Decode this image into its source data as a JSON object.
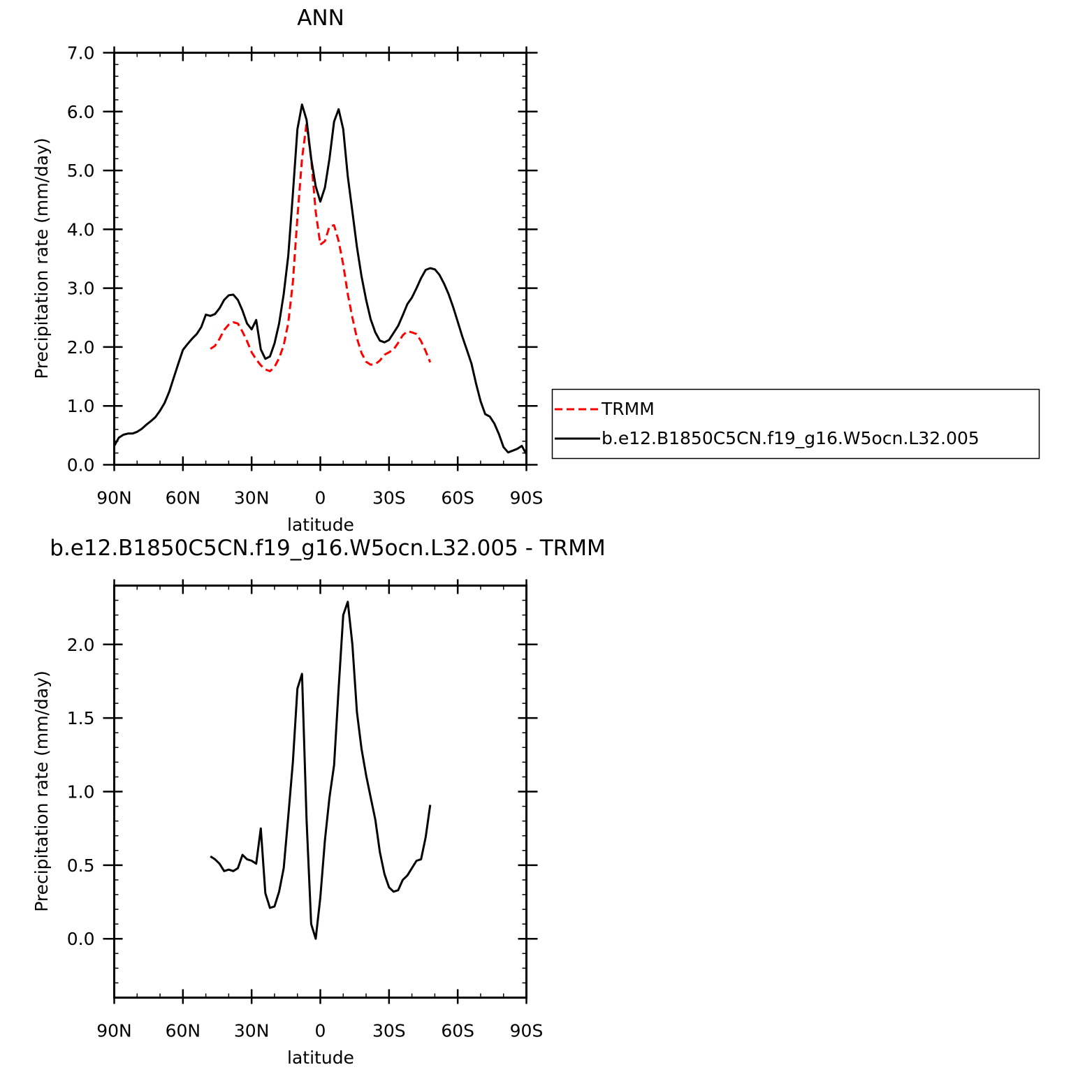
{
  "chart_data": [
    {
      "type": "line",
      "title": "ANN",
      "xlabel": "latitude",
      "ylabel": "Precipitation rate (mm/day)",
      "x_axis": "latitude, 90 (north) to -90 (south)",
      "xlim": [
        90,
        -90
      ],
      "ylim": [
        0,
        7
      ],
      "xticks": [
        {
          "value": 90,
          "label": "90N"
        },
        {
          "value": 60,
          "label": "60N"
        },
        {
          "value": 30,
          "label": "30N"
        },
        {
          "value": 0,
          "label": "0"
        },
        {
          "value": -30,
          "label": "30S"
        },
        {
          "value": -60,
          "label": "60S"
        },
        {
          "value": -90,
          "label": "90S"
        }
      ],
      "yticks": [
        {
          "value": 0,
          "label": "0.0"
        },
        {
          "value": 1,
          "label": "1.0"
        },
        {
          "value": 2,
          "label": "2.0"
        },
        {
          "value": 3,
          "label": "3.0"
        },
        {
          "value": 4,
          "label": "4.0"
        },
        {
          "value": 5,
          "label": "5.0"
        },
        {
          "value": 6,
          "label": "6.0"
        },
        {
          "value": 7,
          "label": "7.0"
        }
      ],
      "legend": {
        "placement": "right"
      },
      "series": [
        {
          "name": "TRMM",
          "color": "#ff0000",
          "dash": "dashed",
          "x": [
            48,
            46,
            44,
            42,
            40,
            38,
            36,
            34,
            32,
            30,
            28,
            26,
            24,
            22,
            20,
            18,
            16,
            14,
            12,
            10,
            8,
            6,
            4,
            2,
            0,
            -2,
            -4,
            -6,
            -8,
            -10,
            -12,
            -14,
            -16,
            -18,
            -20,
            -22,
            -24,
            -26,
            -28,
            -30,
            -32,
            -34,
            -36,
            -38,
            -40,
            -42,
            -44,
            -46,
            -48
          ],
          "y": [
            1.97,
            2.02,
            2.14,
            2.29,
            2.38,
            2.42,
            2.4,
            2.26,
            2.1,
            1.91,
            1.79,
            1.69,
            1.62,
            1.59,
            1.66,
            1.81,
            2.03,
            2.41,
            3.1,
            4.2,
            5.2,
            5.8,
            5.2,
            4.3,
            3.74,
            3.8,
            4.05,
            4.07,
            3.8,
            3.4,
            2.9,
            2.5,
            2.15,
            1.9,
            1.75,
            1.7,
            1.71,
            1.77,
            1.87,
            1.91,
            1.96,
            2.07,
            2.2,
            2.27,
            2.25,
            2.22,
            2.1,
            1.93,
            1.74
          ]
        },
        {
          "name": "b.e12.B1850C5CN.f19_g16.W5ocn.L32.005",
          "color": "#000000",
          "dash": "solid",
          "x": [
            90,
            88,
            86,
            84,
            82,
            80,
            78,
            76,
            74,
            72,
            70,
            68,
            66,
            64,
            62,
            60,
            58,
            56,
            54,
            52,
            50,
            48,
            46,
            44,
            42,
            40,
            38,
            36,
            34,
            32,
            30,
            28,
            26,
            24,
            22,
            20,
            18,
            16,
            14,
            12,
            10,
            8,
            6,
            4,
            2,
            0,
            -2,
            -4,
            -6,
            -8,
            -10,
            -12,
            -14,
            -16,
            -18,
            -20,
            -22,
            -24,
            -26,
            -28,
            -30,
            -32,
            -34,
            -36,
            -38,
            -40,
            -42,
            -44,
            -46,
            -48,
            -50,
            -52,
            -54,
            -56,
            -58,
            -60,
            -62,
            -64,
            -66,
            -68,
            -70,
            -72,
            -74,
            -76,
            -78,
            -80,
            -82,
            -84,
            -86,
            -88,
            -90
          ],
          "y": [
            0.32,
            0.46,
            0.51,
            0.53,
            0.53,
            0.56,
            0.61,
            0.68,
            0.74,
            0.81,
            0.92,
            1.05,
            1.24,
            1.48,
            1.72,
            1.95,
            2.05,
            2.14,
            2.22,
            2.34,
            2.55,
            2.53,
            2.56,
            2.66,
            2.8,
            2.88,
            2.89,
            2.8,
            2.62,
            2.4,
            2.3,
            2.46,
            1.96,
            1.8,
            1.84,
            2.06,
            2.4,
            2.9,
            3.55,
            4.6,
            5.7,
            6.12,
            5.86,
            5.2,
            4.73,
            4.47,
            4.71,
            5.2,
            5.83,
            6.04,
            5.7,
            4.9,
            4.3,
            3.7,
            3.2,
            2.8,
            2.47,
            2.25,
            2.11,
            2.08,
            2.12,
            2.24,
            2.36,
            2.54,
            2.73,
            2.84,
            3.0,
            3.17,
            3.31,
            3.34,
            3.32,
            3.23,
            3.08,
            2.9,
            2.68,
            2.43,
            2.18,
            1.95,
            1.72,
            1.38,
            1.08,
            0.86,
            0.82,
            0.7,
            0.52,
            0.3,
            0.21,
            0.24,
            0.27,
            0.32,
            0.18
          ]
        }
      ]
    },
    {
      "type": "line",
      "title": "b.e12.B1850C5CN.f19_g16.W5ocn.L32.005 - TRMM",
      "xlabel": "latitude",
      "ylabel": "Precipitation rate (mm/day)",
      "xlim": [
        90,
        -90
      ],
      "ylim": [
        -0.4,
        2.4
      ],
      "xticks": [
        {
          "value": 90,
          "label": "90N"
        },
        {
          "value": 60,
          "label": "60N"
        },
        {
          "value": 30,
          "label": "30N"
        },
        {
          "value": 0,
          "label": "0"
        },
        {
          "value": -30,
          "label": "30S"
        },
        {
          "value": -60,
          "label": "60S"
        },
        {
          "value": -90,
          "label": "90S"
        }
      ],
      "yticks": [
        {
          "value": 0,
          "label": "0.0"
        },
        {
          "value": 0.5,
          "label": "0.5"
        },
        {
          "value": 1,
          "label": "1.0"
        },
        {
          "value": 1.5,
          "label": "1.5"
        },
        {
          "value": 2,
          "label": "2.0"
        }
      ],
      "series": [
        {
          "color": "#000000",
          "dash": "solid",
          "x": [
            48,
            46,
            44,
            42,
            40,
            38,
            36,
            34,
            32,
            30,
            28,
            26,
            24,
            22,
            20,
            18,
            16,
            14,
            12,
            10,
            8,
            6,
            4,
            2,
            0,
            -2,
            -4,
            -6,
            -8,
            -10,
            -12,
            -14,
            -16,
            -18,
            -20,
            -22,
            -24,
            -26,
            -28,
            -30,
            -32,
            -34,
            -36,
            -38,
            -40,
            -42,
            -44,
            -46,
            -48
          ],
          "y": [
            0.56,
            0.54,
            0.51,
            0.46,
            0.47,
            0.46,
            0.48,
            0.57,
            0.54,
            0.53,
            0.51,
            0.75,
            0.31,
            0.21,
            0.22,
            0.32,
            0.48,
            0.83,
            1.2,
            1.7,
            1.8,
            0.81,
            0.1,
            0.0,
            0.28,
            0.67,
            0.96,
            1.18,
            1.7,
            2.2,
            2.29,
            2.0,
            1.54,
            1.29,
            1.11,
            0.96,
            0.81,
            0.59,
            0.44,
            0.35,
            0.32,
            0.33,
            0.4,
            0.43,
            0.48,
            0.53,
            0.54,
            0.69,
            0.91
          ]
        }
      ]
    }
  ]
}
